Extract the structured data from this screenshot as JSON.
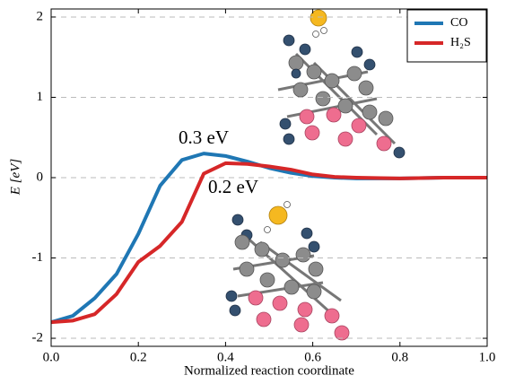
{
  "chart_data": {
    "type": "line",
    "x_label": "Normalized reaction coordinate",
    "y_label": "E [eV]",
    "x": [
      0,
      0.05,
      0.1,
      0.15,
      0.2,
      0.25,
      0.3,
      0.35,
      0.4,
      0.45,
      0.5,
      0.55,
      0.6,
      0.65,
      0.7,
      0.8,
      0.9,
      1.0
    ],
    "series": [
      {
        "name": "CO",
        "color": "#1f77b4",
        "values": [
          -1.8,
          -1.72,
          -1.5,
          -1.2,
          -0.7,
          -0.1,
          0.22,
          0.3,
          0.27,
          0.2,
          0.12,
          0.06,
          0.02,
          0.0,
          -0.01,
          -0.01,
          0.0,
          0.0
        ]
      },
      {
        "name": "H₂S",
        "color": "#d62728",
        "values": [
          -1.8,
          -1.78,
          -1.7,
          -1.45,
          -1.05,
          -0.85,
          -0.55,
          0.05,
          0.18,
          0.17,
          0.14,
          0.1,
          0.04,
          0.01,
          0.0,
          -0.01,
          0.0,
          0.0
        ]
      }
    ],
    "annotations": [
      "0.3 eV",
      "0.2 eV"
    ],
    "xlim": [
      0,
      1.0
    ],
    "ylim": [
      -2.1,
      2.1
    ],
    "xticks": [
      {
        "value": 0,
        "label": "0.0"
      },
      {
        "value": 0.2,
        "label": "0.2"
      },
      {
        "value": 0.4,
        "label": "0.4"
      },
      {
        "value": 0.6,
        "label": "0.6"
      },
      {
        "value": 0.8,
        "label": "0.8"
      },
      {
        "value": 1.0,
        "label": "1.0"
      }
    ],
    "yticks": [
      -2,
      -1,
      0,
      1,
      2
    ],
    "grid": true,
    "legend": "upper right"
  }
}
